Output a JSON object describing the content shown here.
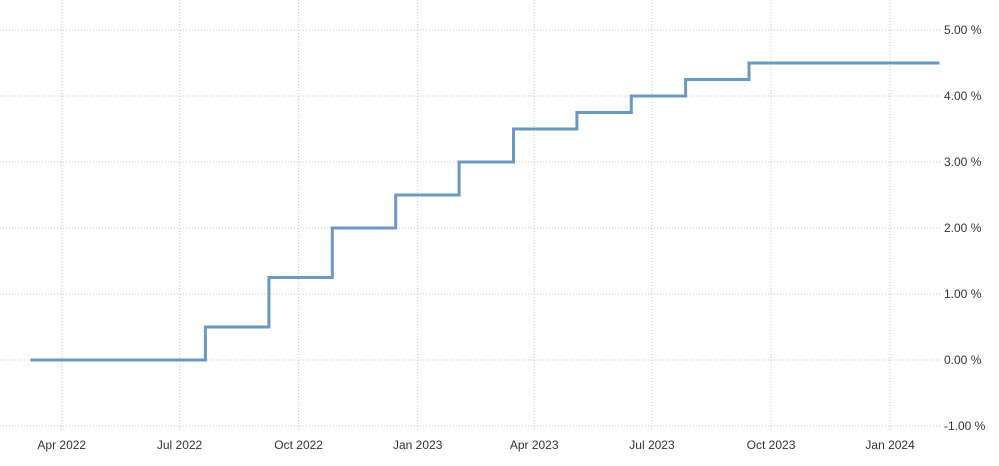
{
  "chart_data": {
    "type": "line",
    "title": "",
    "xlabel": "",
    "ylabel": "",
    "x_ticks": [
      {
        "date": "2022-04-01",
        "label": "Apr 2022"
      },
      {
        "date": "2022-07-01",
        "label": "Jul 2022"
      },
      {
        "date": "2022-10-01",
        "label": "Oct 2022"
      },
      {
        "date": "2023-01-01",
        "label": "Jan 2023"
      },
      {
        "date": "2023-04-01",
        "label": "Apr 2023"
      },
      {
        "date": "2023-07-01",
        "label": "Jul 2023"
      },
      {
        "date": "2023-10-01",
        "label": "Oct 2023"
      },
      {
        "date": "2024-01-01",
        "label": "Jan 2024"
      }
    ],
    "y_ticks": [
      {
        "value": 5,
        "label": "5.00 %"
      },
      {
        "value": 4,
        "label": "4.00 %"
      },
      {
        "value": 3,
        "label": "3.00 %"
      },
      {
        "value": 2,
        "label": "2.00 %"
      },
      {
        "value": 1,
        "label": "1.00 %"
      },
      {
        "value": 0,
        "label": "0.00 %"
      },
      {
        "value": -1,
        "label": "-1.00 %"
      }
    ],
    "ylim": [
      -1,
      5
    ],
    "xlim": [
      "2022-03-09",
      "2024-02-07"
    ],
    "grid": true,
    "y_axis_position": "right",
    "step": true,
    "series": [
      {
        "color": "#6c98c2",
        "points": [
          {
            "x": "2022-03-09",
            "y": 0.0
          },
          {
            "x": "2022-07-21",
            "y": 0.5
          },
          {
            "x": "2022-09-08",
            "y": 1.25
          },
          {
            "x": "2022-10-27",
            "y": 2.0
          },
          {
            "x": "2022-12-15",
            "y": 2.5
          },
          {
            "x": "2023-02-02",
            "y": 3.0
          },
          {
            "x": "2023-03-16",
            "y": 3.5
          },
          {
            "x": "2023-05-04",
            "y": 3.75
          },
          {
            "x": "2023-06-15",
            "y": 4.0
          },
          {
            "x": "2023-07-27",
            "y": 4.25
          },
          {
            "x": "2023-09-14",
            "y": 4.5
          },
          {
            "x": "2024-02-07",
            "y": 4.5
          }
        ]
      }
    ]
  }
}
